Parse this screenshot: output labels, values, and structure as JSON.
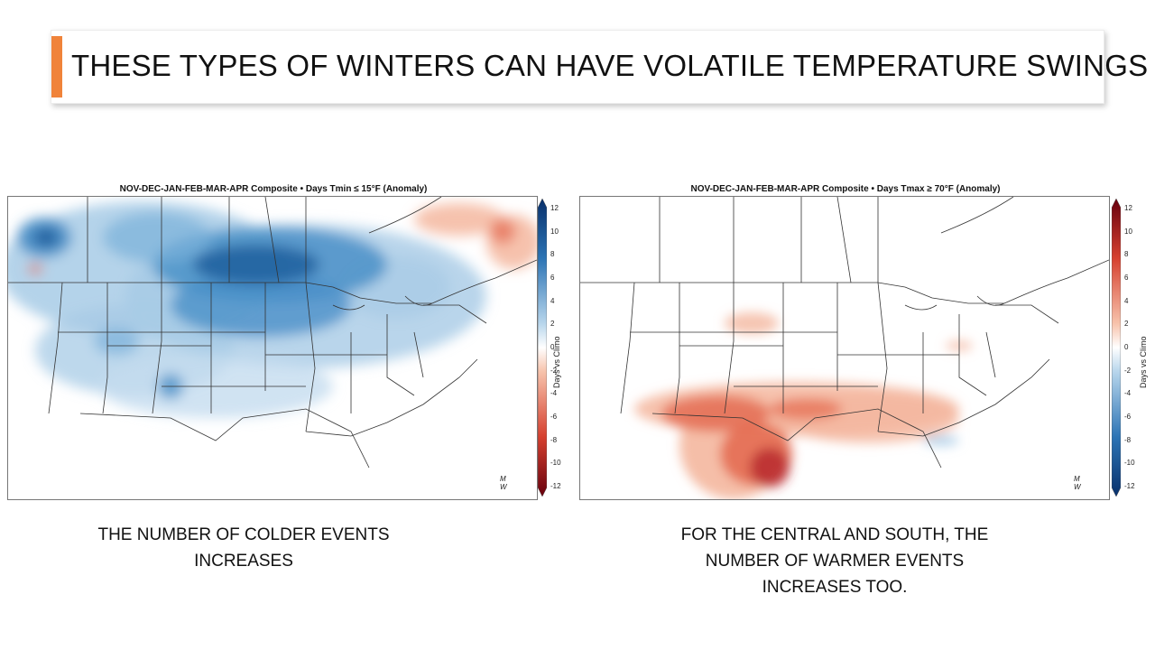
{
  "slide": {
    "title": "THESE TYPES OF WINTERS CAN HAVE VOLATILE TEMPERATURE SWINGS",
    "accent_color": "#f0833a"
  },
  "left_map": {
    "header": "NOV-DEC-JAN-FEB-MAR-APR Composite • Days Tmin ≤ 15°F (Anomaly)",
    "colorbar_title": "Days vs Climo",
    "colorbar_ticks": [
      "12",
      "10",
      "8",
      "6",
      "4",
      "2",
      "0",
      "-2",
      "-4",
      "-6",
      "-8",
      "-10",
      "-12"
    ],
    "logo_top": "M",
    "logo_bottom": "W",
    "caption_line1": "THE NUMBER OF COLDER EVENTS",
    "caption_line2": "INCREASES"
  },
  "right_map": {
    "header": "NOV-DEC-JAN-FEB-MAR-APR Composite • Days Tmax ≥ 70°F (Anomaly)",
    "colorbar_title": "Days vs Climo",
    "colorbar_ticks": [
      "12",
      "10",
      "8",
      "6",
      "4",
      "2",
      "0",
      "-2",
      "-4",
      "-6",
      "-8",
      "-10",
      "-12"
    ],
    "logo_top": "M",
    "logo_bottom": "W",
    "caption_line1": "FOR THE CENTRAL AND SOUTH, THE",
    "caption_line2": "NUMBER OF WARMER EVENTS",
    "caption_line3": "INCREASES TOO."
  },
  "colors": {
    "cold_dark": "#1e5f9e",
    "cold_mid": "#4a90c8",
    "cold_light": "#a7cbe6",
    "warm_light": "#f4b79f",
    "warm_mid": "#e4694f",
    "warm_dark": "#b92b2f"
  }
}
